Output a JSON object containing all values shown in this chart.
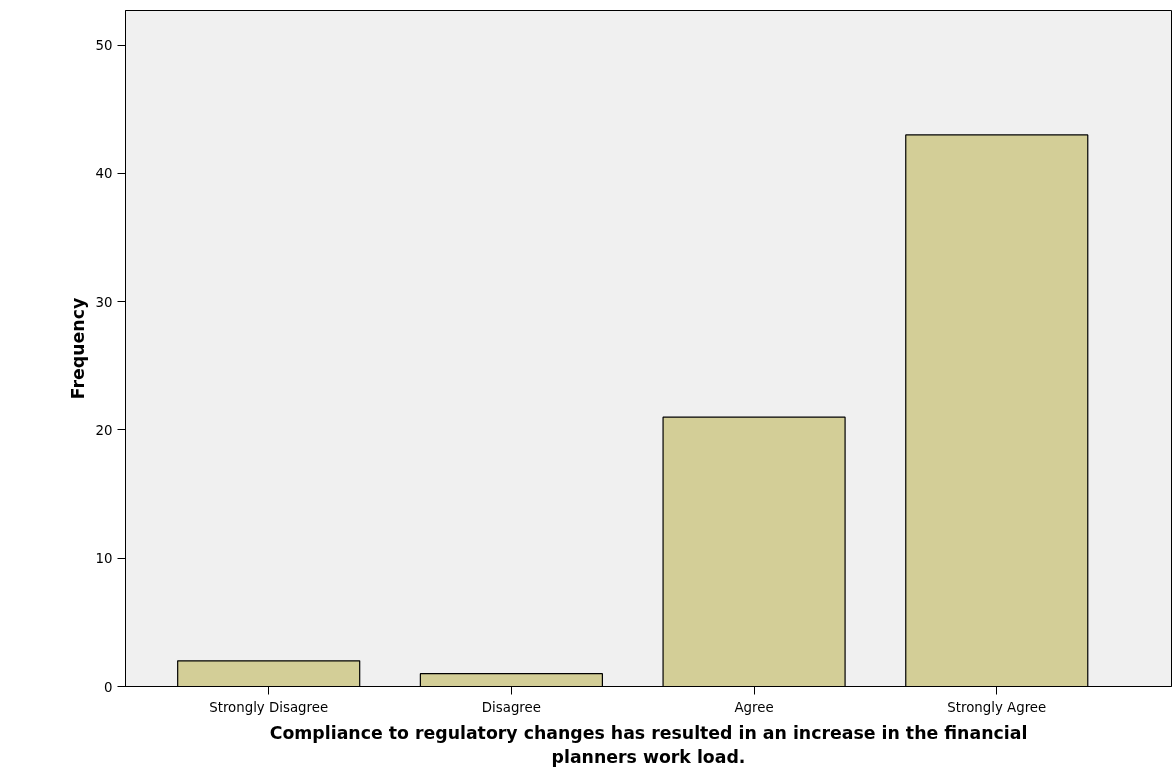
{
  "chart_data": {
    "type": "bar",
    "xlabel": "Compliance to regulatory changes has resulted in an increase in the financial planners work load.",
    "ylabel": "Frequency",
    "categories": [
      "Strongly Disagree",
      "Disagree",
      "Agree",
      "Strongly Agree"
    ],
    "values": [
      2,
      1,
      21,
      43
    ],
    "color": "#d3ce97",
    "ylim": [
      0,
      52.7
    ],
    "yticks": [
      0,
      10,
      20,
      30,
      40,
      50
    ],
    "grid": false
  }
}
